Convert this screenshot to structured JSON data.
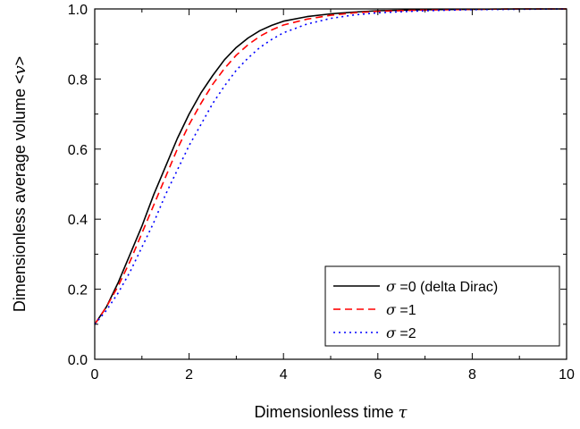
{
  "chart_data": {
    "type": "line",
    "title": "",
    "xlabel": "Dimensionless time",
    "xlabel_symbol": "τ",
    "ylabel": "Dimensionless average volume <",
    "ylabel_symbol": "v",
    "ylabel_suffix": ">",
    "xlim": [
      0,
      10
    ],
    "ylim": [
      0,
      1.0
    ],
    "xticks": [
      0,
      2,
      4,
      6,
      8,
      10
    ],
    "yticks": [
      0.0,
      0.2,
      0.4,
      0.6,
      0.8,
      1.0
    ],
    "xtick_labels": [
      "0",
      "2",
      "4",
      "6",
      "8",
      "10"
    ],
    "ytick_labels": [
      "0.0",
      "0.2",
      "0.4",
      "0.6",
      "0.8",
      "1.0"
    ],
    "grid": false,
    "legend_position": "bottom-right",
    "series": [
      {
        "legend_symbol": "σ",
        "legend_text": "=0 (delta Dirac)",
        "color": "#000000",
        "dash": "solid",
        "x": [
          0,
          0.25,
          0.5,
          0.75,
          1,
          1.25,
          1.5,
          1.75,
          2,
          2.25,
          2.5,
          2.75,
          3,
          3.25,
          3.5,
          3.75,
          4,
          4.5,
          5,
          5.5,
          6,
          7,
          8,
          9,
          10
        ],
        "y": [
          0.1,
          0.15,
          0.22,
          0.3,
          0.38,
          0.47,
          0.55,
          0.63,
          0.7,
          0.76,
          0.81,
          0.855,
          0.89,
          0.917,
          0.938,
          0.953,
          0.965,
          0.978,
          0.986,
          0.991,
          0.995,
          0.998,
          0.999,
          1.0,
          1.0
        ]
      },
      {
        "legend_symbol": "σ",
        "legend_text": "=1",
        "color": "#ff0000",
        "dash": "dashed",
        "x": [
          0,
          0.25,
          0.5,
          0.75,
          1,
          1.25,
          1.5,
          1.75,
          2,
          2.25,
          2.5,
          2.75,
          3,
          3.25,
          3.5,
          3.75,
          4,
          4.5,
          5,
          5.5,
          6,
          7,
          8,
          9,
          10
        ],
        "y": [
          0.1,
          0.15,
          0.21,
          0.28,
          0.36,
          0.44,
          0.52,
          0.6,
          0.67,
          0.73,
          0.785,
          0.83,
          0.868,
          0.898,
          0.922,
          0.94,
          0.954,
          0.971,
          0.982,
          0.989,
          0.993,
          0.997,
          0.999,
          1.0,
          1.0
        ]
      },
      {
        "legend_symbol": "σ",
        "legend_text": "=2",
        "color": "#0000ff",
        "dash": "dotted",
        "x": [
          0,
          0.25,
          0.5,
          0.75,
          1,
          1.25,
          1.5,
          1.75,
          2,
          2.25,
          2.5,
          2.75,
          3,
          3.25,
          3.5,
          3.75,
          4,
          4.5,
          5,
          5.5,
          6,
          7,
          8,
          9,
          10
        ],
        "y": [
          0.1,
          0.14,
          0.19,
          0.25,
          0.32,
          0.39,
          0.47,
          0.54,
          0.61,
          0.67,
          0.73,
          0.78,
          0.825,
          0.86,
          0.89,
          0.913,
          0.932,
          0.957,
          0.973,
          0.983,
          0.989,
          0.995,
          0.998,
          0.999,
          1.0
        ]
      }
    ]
  }
}
